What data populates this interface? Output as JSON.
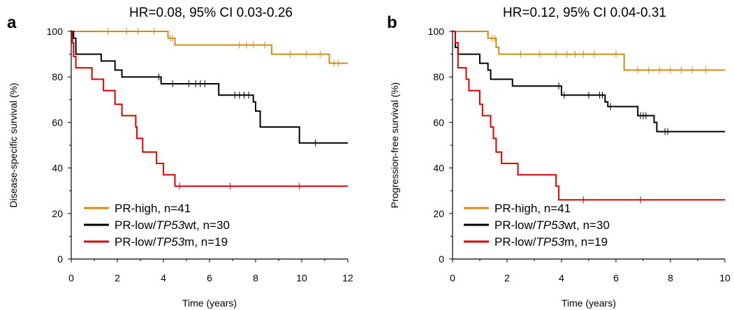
{
  "series_colors": {
    "pr_high": "#d08c14",
    "pr_low_tp53wt": "#000000",
    "pr_low_tp53m": "#d40000"
  },
  "chart_data": [
    {
      "type": "line",
      "step": true,
      "panel_letter": "a",
      "title": "HR=0.08, 95% CI 0.03-0.26",
      "xlabel": "Time (years)",
      "ylabel": "Disease-specific survival (%)",
      "xlim": [
        0,
        12
      ],
      "ylim": [
        0,
        100
      ],
      "xticks": [
        0,
        2,
        4,
        6,
        8,
        10,
        12
      ],
      "yticks": [
        0,
        20,
        40,
        60,
        80,
        100
      ],
      "xtick_labels": [
        "0",
        "2",
        "4",
        "6",
        "8",
        "10",
        "12"
      ],
      "ytick_labels": [
        "0",
        "20",
        "40",
        "60",
        "80",
        "100"
      ],
      "legend_position": "bottom-left",
      "series": [
        {
          "key": "pr_high",
          "name_plain": "PR-high, n=41",
          "steps": [
            [
              0,
              100
            ],
            [
              4.2,
              97
            ],
            [
              4.5,
              94
            ],
            [
              8.7,
              90
            ],
            [
              11.2,
              86
            ],
            [
              12,
              86
            ]
          ],
          "censored": [
            [
              1.6,
              100
            ],
            [
              2.4,
              100
            ],
            [
              2.9,
              100
            ],
            [
              3.6,
              100
            ],
            [
              4.3,
              97
            ],
            [
              4.4,
              97
            ],
            [
              7.3,
              94
            ],
            [
              7.6,
              94
            ],
            [
              7.9,
              94
            ],
            [
              8.4,
              94
            ],
            [
              9.5,
              90
            ],
            [
              10.2,
              90
            ],
            [
              10.8,
              90
            ],
            [
              11.4,
              86
            ],
            [
              11.6,
              86
            ]
          ]
        },
        {
          "key": "pr_low_tp53wt",
          "name_plain": "PR-low/TP53wt, n=30",
          "steps": [
            [
              0,
              100
            ],
            [
              0.1,
              97
            ],
            [
              0.2,
              90
            ],
            [
              1.3,
              87
            ],
            [
              1.9,
              83
            ],
            [
              2.2,
              80
            ],
            [
              3.9,
              77
            ],
            [
              6.4,
              72
            ],
            [
              7.9,
              69
            ],
            [
              8.0,
              65
            ],
            [
              8.2,
              58
            ],
            [
              9.9,
              51
            ],
            [
              12,
              51
            ]
          ],
          "censored": [
            [
              3.8,
              80
            ],
            [
              4.4,
              77
            ],
            [
              5.1,
              77
            ],
            [
              5.4,
              77
            ],
            [
              5.6,
              77
            ],
            [
              5.8,
              77
            ],
            [
              7.1,
              72
            ],
            [
              7.3,
              72
            ],
            [
              7.5,
              72
            ],
            [
              7.7,
              72
            ],
            [
              10.6,
              51
            ]
          ]
        },
        {
          "key": "pr_low_tp53m",
          "name_plain": "PR-low/TP53m, n=19",
          "steps": [
            [
              0,
              100
            ],
            [
              0.05,
              95
            ],
            [
              0.1,
              89
            ],
            [
              0.2,
              84
            ],
            [
              0.9,
              79
            ],
            [
              1.4,
              74
            ],
            [
              1.9,
              68
            ],
            [
              2.2,
              63
            ],
            [
              2.8,
              58
            ],
            [
              2.85,
              53
            ],
            [
              3.1,
              47
            ],
            [
              3.7,
              42
            ],
            [
              4.0,
              37
            ],
            [
              4.5,
              32
            ],
            [
              12,
              32
            ]
          ],
          "censored": [
            [
              4.7,
              32
            ],
            [
              6.9,
              32
            ],
            [
              9.9,
              32
            ]
          ]
        }
      ]
    },
    {
      "type": "line",
      "step": true,
      "panel_letter": "b",
      "title": "HR=0.12, 95% CI 0.04-0.31",
      "xlabel": "Time (years)",
      "ylabel": "Progression-free survival (%)",
      "xlim": [
        0,
        10
      ],
      "ylim": [
        0,
        100
      ],
      "xticks": [
        0,
        2,
        4,
        6,
        8,
        10
      ],
      "yticks": [
        0,
        20,
        40,
        60,
        80,
        100
      ],
      "xtick_labels": [
        "0",
        "2",
        "4",
        "6",
        "8",
        "10"
      ],
      "ytick_labels": [
        "0",
        "20",
        "40",
        "60",
        "80",
        "100"
      ],
      "legend_position": "bottom-left",
      "series": [
        {
          "key": "pr_high",
          "name_plain": "PR-high, n=41",
          "steps": [
            [
              0,
              100
            ],
            [
              1.3,
              97
            ],
            [
              1.6,
              93
            ],
            [
              1.7,
              90
            ],
            [
              6.3,
              83
            ],
            [
              10,
              83
            ]
          ],
          "censored": [
            [
              1.45,
              97
            ],
            [
              1.55,
              97
            ],
            [
              2.5,
              90
            ],
            [
              3.2,
              90
            ],
            [
              3.8,
              90
            ],
            [
              4.2,
              90
            ],
            [
              4.5,
              90
            ],
            [
              4.8,
              90
            ],
            [
              5.2,
              90
            ],
            [
              6.0,
              90
            ],
            [
              6.8,
              83
            ],
            [
              7.2,
              83
            ],
            [
              7.6,
              83
            ],
            [
              8.0,
              83
            ],
            [
              8.4,
              83
            ],
            [
              8.8,
              83
            ],
            [
              9.3,
              83
            ]
          ]
        },
        {
          "key": "pr_low_tp53wt",
          "name_plain": "PR-low/TP53wt, n=30",
          "steps": [
            [
              0,
              100
            ],
            [
              0.1,
              93
            ],
            [
              0.2,
              90
            ],
            [
              1.0,
              86
            ],
            [
              1.3,
              83
            ],
            [
              1.4,
              79
            ],
            [
              2.2,
              76
            ],
            [
              4.0,
              72
            ],
            [
              5.6,
              69
            ],
            [
              5.7,
              67
            ],
            [
              6.8,
              63
            ],
            [
              7.4,
              60
            ],
            [
              7.5,
              56
            ],
            [
              10,
              56
            ]
          ],
          "censored": [
            [
              3.9,
              76
            ],
            [
              4.1,
              72
            ],
            [
              5.0,
              72
            ],
            [
              5.4,
              72
            ],
            [
              5.5,
              72
            ],
            [
              5.8,
              67
            ],
            [
              6.9,
              63
            ],
            [
              7.0,
              63
            ],
            [
              7.1,
              63
            ],
            [
              7.8,
              56
            ],
            [
              7.9,
              56
            ]
          ]
        },
        {
          "key": "pr_low_tp53m",
          "name_plain": "PR-low/TP53m, n=19",
          "steps": [
            [
              0,
              100
            ],
            [
              0.1,
              95
            ],
            [
              0.2,
              89
            ],
            [
              0.2,
              84
            ],
            [
              0.5,
              79
            ],
            [
              0.6,
              74
            ],
            [
              1.0,
              68
            ],
            [
              1.1,
              63
            ],
            [
              1.4,
              58
            ],
            [
              1.5,
              53
            ],
            [
              1.6,
              47
            ],
            [
              1.8,
              42
            ],
            [
              2.4,
              37
            ],
            [
              3.8,
              32
            ],
            [
              3.9,
              26
            ],
            [
              10,
              26
            ]
          ],
          "censored": [
            [
              4.8,
              26
            ],
            [
              6.9,
              26
            ]
          ]
        }
      ]
    }
  ],
  "legend": [
    {
      "key": "pr_high",
      "prefix": "PR-high, n=41",
      "italic": "",
      "suffix": ""
    },
    {
      "key": "pr_low_tp53wt",
      "prefix": "PR-low/",
      "italic": "TP53",
      "suffix": "wt, n=30"
    },
    {
      "key": "pr_low_tp53m",
      "prefix": "PR-low/",
      "italic": "TP53",
      "suffix": "m, n=19"
    }
  ]
}
